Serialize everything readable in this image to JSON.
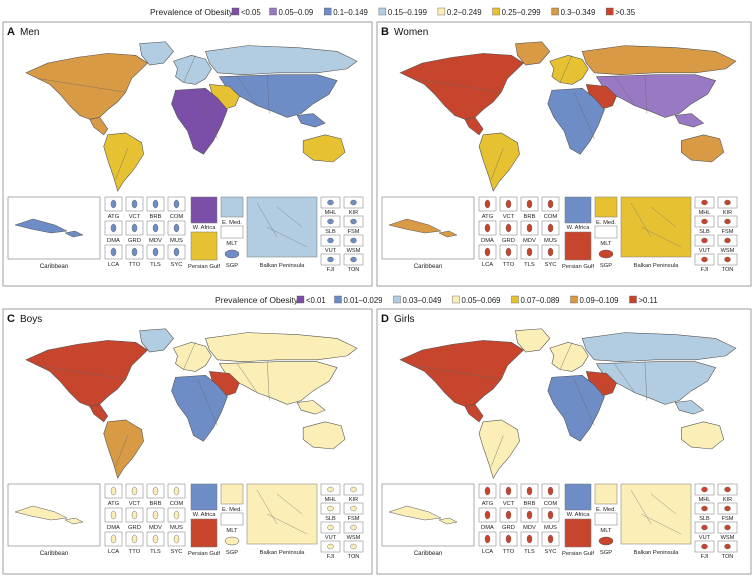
{
  "top_legend": {
    "title": "Prevalence of Obesity",
    "items": [
      {
        "label": "<0.05",
        "color": "#7b4fa8"
      },
      {
        "label": "0.05–0.09",
        "color": "#9a79c4"
      },
      {
        "label": "0.1–0.149",
        "color": "#6e8cc6"
      },
      {
        "label": "0.15–0.199",
        "color": "#b2cde1"
      },
      {
        "label": "0.2–0.249",
        "color": "#fbefb7"
      },
      {
        "label": "0.25–0.299",
        "color": "#e6c232"
      },
      {
        "label": "0.3–0.349",
        "color": "#d99a45"
      },
      {
        "label": ">0.35",
        "color": "#c8452d"
      }
    ]
  },
  "bottom_legend": {
    "title": "Prevalence of Obesity",
    "items": [
      {
        "label": "<0.01",
        "color": "#7b4fa8"
      },
      {
        "label": "0.01–0.029",
        "color": "#6e8cc6"
      },
      {
        "label": "0.03–0.049",
        "color": "#b2cde1"
      },
      {
        "label": "0.05–0.069",
        "color": "#fbefb7"
      },
      {
        "label": "0.07–0.089",
        "color": "#e6c232"
      },
      {
        "label": "0.09–0.109",
        "color": "#d99a45"
      },
      {
        "label": ">0.11",
        "color": "#c8452d"
      }
    ]
  },
  "panels": [
    {
      "letter": "A",
      "title": "Men",
      "scheme": {
        "northamerica": "#d99a45",
        "greenland": "#b2cde1",
        "southamerica": "#e6c232",
        "europe": "#b2cde1",
        "russia": "#b2cde1",
        "africa": "#7b4fa8",
        "asia": "#6e8cc6",
        "middleeast": "#e6c232",
        "australia": "#e6c232",
        "caribbean": "#6e8cc6",
        "island": "#6e8cc6"
      }
    },
    {
      "letter": "B",
      "title": "Women",
      "scheme": {
        "northamerica": "#c8452d",
        "greenland": "#d99a45",
        "southamerica": "#e6c232",
        "europe": "#e6c232",
        "russia": "#d99a45",
        "africa": "#6e8cc6",
        "asia": "#9a79c4",
        "middleeast": "#c8452d",
        "australia": "#d99a45",
        "caribbean": "#d99a45",
        "island": "#c8452d"
      }
    },
    {
      "letter": "C",
      "title": "Boys",
      "scheme": {
        "northamerica": "#c8452d",
        "greenland": "#b2cde1",
        "southamerica": "#d99a45",
        "europe": "#fbefb7",
        "russia": "#fbefb7",
        "africa": "#6e8cc6",
        "asia": "#fbefb7",
        "middleeast": "#c8452d",
        "australia": "#fbefb7",
        "caribbean": "#fbefb7",
        "island": "#fbefb7"
      }
    },
    {
      "letter": "D",
      "title": "Girls",
      "scheme": {
        "northamerica": "#c8452d",
        "greenland": "#fbefb7",
        "southamerica": "#fbefb7",
        "europe": "#fbefb7",
        "russia": "#b2cde1",
        "africa": "#6e8cc6",
        "asia": "#b2cde1",
        "middleeast": "#c8452d",
        "australia": "#fbefb7",
        "caribbean": "#fbefb7",
        "island": "#c8452d"
      }
    }
  ],
  "inset_labels": {
    "caribbean": "Caribbean",
    "small": [
      "ATG",
      "VCT",
      "BRB",
      "COM",
      "DMA",
      "GRD",
      "MDV",
      "MUS",
      "LCA",
      "TTO",
      "TLS",
      "SYC"
    ],
    "w_africa": "W. Africa",
    "e_med": "E. Med.",
    "mlt": "MLT",
    "persian_gulf": "Persian Gulf",
    "sgp": "SGP",
    "balkan": "Balkan Peninsula",
    "right": [
      "MHL",
      "KIR",
      "SLB",
      "FSM",
      "VUT",
      "WSM",
      "FJI",
      "TON"
    ]
  }
}
